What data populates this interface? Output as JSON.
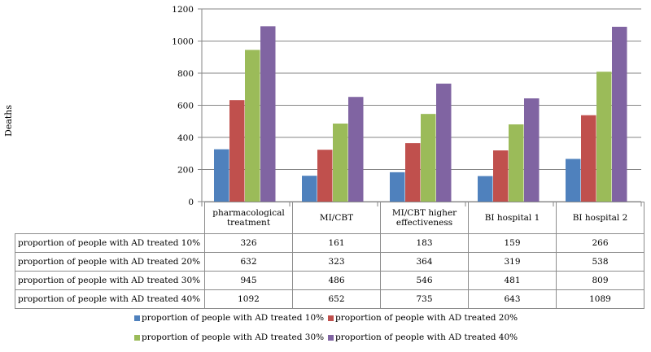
{
  "chart_data": {
    "type": "bar",
    "title": "",
    "xlabel": "",
    "ylabel": "Deaths",
    "ylim": [
      0,
      1200
    ],
    "yticks": [
      0,
      200,
      400,
      600,
      800,
      1000,
      1200
    ],
    "grid": true,
    "legend_position": "bottom",
    "categories": [
      "pharmacological treatment",
      "MI/CBT",
      "MI/CBT higher effectiveness",
      "BI hospital 1",
      "BI hospital 2"
    ],
    "series": [
      {
        "name": "proportion of people with AD treated 10%",
        "color": "#4f81bd",
        "values": [
          326,
          161,
          183,
          159,
          266
        ]
      },
      {
        "name": "proportion of people with AD treated 20%",
        "color": "#c0504d",
        "values": [
          632,
          323,
          364,
          319,
          538
        ]
      },
      {
        "name": "proportion of people with AD treated 30%",
        "color": "#9bbb59",
        "values": [
          945,
          486,
          546,
          481,
          809
        ]
      },
      {
        "name": "proportion of people with AD treated 40%",
        "color": "#8064a2",
        "values": [
          1092,
          652,
          735,
          643,
          1089
        ]
      }
    ]
  }
}
